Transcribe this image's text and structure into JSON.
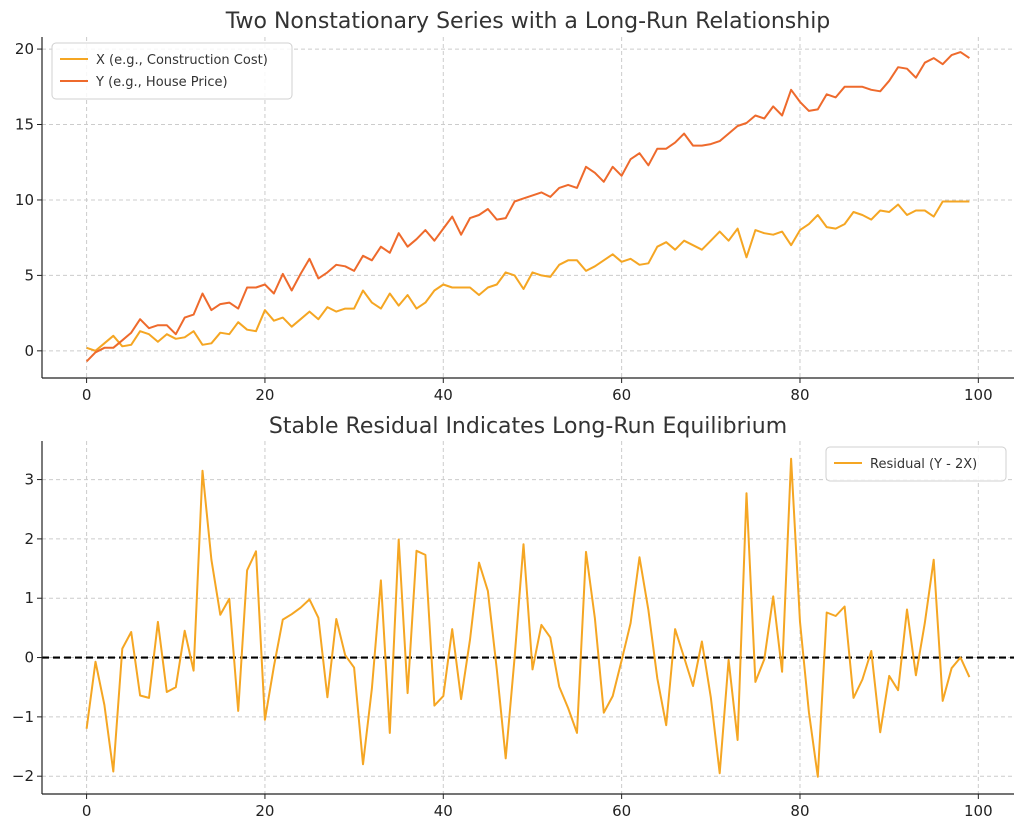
{
  "chart_data": [
    {
      "type": "line",
      "title": "Two Nonstationary Series with a Long-Run Relationship",
      "xlabel": "",
      "ylabel": "",
      "xlim": [
        -5,
        104
      ],
      "ylim": [
        -1.8,
        20.8
      ],
      "xticks": [
        0,
        20,
        40,
        60,
        80,
        100
      ],
      "yticks": [
        0,
        5,
        10,
        15,
        20
      ],
      "grid": true,
      "legend_position": "top-left",
      "series": [
        {
          "name": "X (e.g., Construction Cost)",
          "color": "#f5a623",
          "x": [
            0,
            1,
            2,
            3,
            4,
            5,
            6,
            7,
            8,
            9,
            10,
            11,
            12,
            13,
            14,
            15,
            16,
            17,
            18,
            19,
            20,
            21,
            22,
            23,
            24,
            25,
            26,
            27,
            28,
            29,
            30,
            31,
            32,
            33,
            34,
            35,
            36,
            37,
            38,
            39,
            40,
            41,
            42,
            43,
            44,
            45,
            46,
            47,
            48,
            49,
            50,
            51,
            52,
            53,
            54,
            55,
            56,
            57,
            58,
            59,
            60,
            61,
            62,
            63,
            64,
            65,
            66,
            67,
            68,
            69,
            70,
            71,
            72,
            73,
            74,
            75,
            76,
            77,
            78,
            79,
            80,
            81,
            82,
            83,
            84,
            85,
            86,
            87,
            88,
            89,
            90,
            91,
            92,
            93,
            94,
            95,
            96,
            97,
            98,
            99
          ],
          "values": [
            0.2,
            0.0,
            0.5,
            1.0,
            0.3,
            0.4,
            1.3,
            1.1,
            0.6,
            1.1,
            0.8,
            0.9,
            1.3,
            0.4,
            0.5,
            1.2,
            1.1,
            1.9,
            1.4,
            1.3,
            2.7,
            2.0,
            2.2,
            1.6,
            2.1,
            2.6,
            2.1,
            2.9,
            2.6,
            2.8,
            2.8,
            4.0,
            3.2,
            2.8,
            3.8,
            3.0,
            3.7,
            2.8,
            3.2,
            4.0,
            4.4,
            4.2,
            4.2,
            4.2,
            3.7,
            4.2,
            4.4,
            5.2,
            5.0,
            4.1,
            5.2,
            5.0,
            4.9,
            5.7,
            6.0,
            6.0,
            5.3,
            5.6,
            6.0,
            6.4,
            5.9,
            6.1,
            5.7,
            5.8,
            6.9,
            7.2,
            6.7,
            7.3,
            7.0,
            6.7,
            7.3,
            7.9,
            7.3,
            8.1,
            6.2,
            8.0,
            7.8,
            7.7,
            7.9,
            7.0,
            8.0,
            8.4,
            9.0,
            8.2,
            8.1,
            8.4,
            9.2,
            9.0,
            8.7,
            9.3,
            9.2,
            9.7,
            9.0,
            9.3,
            9.3,
            8.9,
            9.9,
            9.9,
            9.9,
            9.9
          ]
        },
        {
          "name": "Y (e.g., House Price)",
          "color": "#ee6a2c",
          "x": [
            0,
            1,
            2,
            3,
            4,
            5,
            6,
            7,
            8,
            9,
            10,
            11,
            12,
            13,
            14,
            15,
            16,
            17,
            18,
            19,
            20,
            21,
            22,
            23,
            24,
            25,
            26,
            27,
            28,
            29,
            30,
            31,
            32,
            33,
            34,
            35,
            36,
            37,
            38,
            39,
            40,
            41,
            42,
            43,
            44,
            45,
            46,
            47,
            48,
            49,
            50,
            51,
            52,
            53,
            54,
            55,
            56,
            57,
            58,
            59,
            60,
            61,
            62,
            63,
            64,
            65,
            66,
            67,
            68,
            69,
            70,
            71,
            72,
            73,
            74,
            75,
            76,
            77,
            78,
            79,
            80,
            81,
            82,
            83,
            84,
            85,
            86,
            87,
            88,
            89,
            90,
            91,
            92,
            93,
            94,
            95,
            96,
            97,
            98,
            99
          ],
          "values": [
            -0.7,
            -0.1,
            0.2,
            0.2,
            0.7,
            1.2,
            2.1,
            1.5,
            1.7,
            1.7,
            1.1,
            2.2,
            2.4,
            3.8,
            2.7,
            3.1,
            3.2,
            2.8,
            4.2,
            4.2,
            4.4,
            3.8,
            5.1,
            4.0,
            5.1,
            6.1,
            4.8,
            5.2,
            5.7,
            5.6,
            5.3,
            6.3,
            6.0,
            6.9,
            6.5,
            7.8,
            6.9,
            7.4,
            8.0,
            7.3,
            8.1,
            8.9,
            7.7,
            8.8,
            9.0,
            9.4,
            8.7,
            8.8,
            9.9,
            10.1,
            10.3,
            10.5,
            10.2,
            10.8,
            11.0,
            10.8,
            12.2,
            11.8,
            11.2,
            12.2,
            11.6,
            12.7,
            13.1,
            12.3,
            13.4,
            13.4,
            13.8,
            14.4,
            13.6,
            13.6,
            13.7,
            13.9,
            14.4,
            14.9,
            15.1,
            15.6,
            15.4,
            16.2,
            15.6,
            17.3,
            16.5,
            15.9,
            16.0,
            17.0,
            16.8,
            17.5,
            17.5,
            17.5,
            17.3,
            17.2,
            17.9,
            18.8,
            18.7,
            18.1,
            19.1,
            19.4,
            19.0,
            19.6,
            19.8,
            19.4
          ]
        }
      ]
    },
    {
      "type": "line",
      "title": "Stable Residual Indicates Long-Run Equilibrium",
      "xlabel": "",
      "ylabel": "",
      "xlim": [
        -5,
        104
      ],
      "ylim": [
        -2.3,
        3.65
      ],
      "xticks": [
        0,
        20,
        40,
        60,
        80,
        100
      ],
      "yticks": [
        -2,
        -1,
        0,
        1,
        2,
        3
      ],
      "grid": true,
      "legend_position": "top-right",
      "reference_line": {
        "y": 0,
        "style": "dashed",
        "color": "#000000"
      },
      "series": [
        {
          "name": "Residual (Y - 2X)",
          "color": "#f5a623",
          "x": [
            0,
            1,
            2,
            3,
            4,
            5,
            6,
            7,
            8,
            9,
            10,
            11,
            12,
            13,
            14,
            15,
            16,
            17,
            18,
            19,
            20,
            21,
            22,
            23,
            24,
            25,
            26,
            27,
            28,
            29,
            30,
            31,
            32,
            33,
            34,
            35,
            36,
            37,
            38,
            39,
            40,
            41,
            42,
            43,
            44,
            45,
            46,
            47,
            48,
            49,
            50,
            51,
            52,
            53,
            54,
            55,
            56,
            57,
            58,
            59,
            60,
            61,
            62,
            63,
            64,
            65,
            66,
            67,
            68,
            69,
            70,
            71,
            72,
            73,
            74,
            75,
            76,
            77,
            78,
            79,
            80,
            81,
            82,
            83,
            84,
            85,
            86,
            87,
            88,
            89,
            90,
            91,
            92,
            93,
            94,
            95,
            96,
            97,
            98,
            99
          ],
          "values": [
            -1.2,
            -0.07,
            -0.8,
            -1.92,
            0.15,
            0.43,
            -0.64,
            -0.68,
            0.6,
            -0.58,
            -0.5,
            0.45,
            -0.22,
            3.15,
            1.65,
            0.72,
            0.99,
            -0.9,
            1.47,
            1.79,
            -1.05,
            -0.15,
            0.64,
            0.73,
            0.84,
            0.98,
            0.67,
            -0.67,
            0.65,
            0.04,
            -0.17,
            -1.8,
            -0.52,
            1.3,
            -1.27,
            1.99,
            -0.6,
            1.8,
            1.73,
            -0.81,
            -0.65,
            0.48,
            -0.7,
            0.3,
            1.6,
            1.12,
            -0.2,
            -1.7,
            0.0,
            1.91,
            -0.2,
            0.55,
            0.34,
            -0.49,
            -0.85,
            -1.27,
            1.78,
            0.66,
            -0.93,
            -0.65,
            -0.05,
            0.58,
            1.69,
            0.8,
            -0.35,
            -1.14,
            0.48,
            0.0,
            -0.48,
            0.27,
            -0.67,
            -1.95,
            -0.04,
            -1.39,
            2.77,
            -0.41,
            -0.03,
            1.03,
            -0.24,
            3.35,
            0.6,
            -0.92,
            -2.01,
            0.76,
            0.7,
            0.86,
            -0.68,
            -0.37,
            0.11,
            -1.26,
            -0.31,
            -0.55,
            0.81,
            -0.3,
            0.58,
            1.65,
            -0.73,
            -0.18,
            0.0,
            -0.33
          ]
        }
      ]
    }
  ]
}
